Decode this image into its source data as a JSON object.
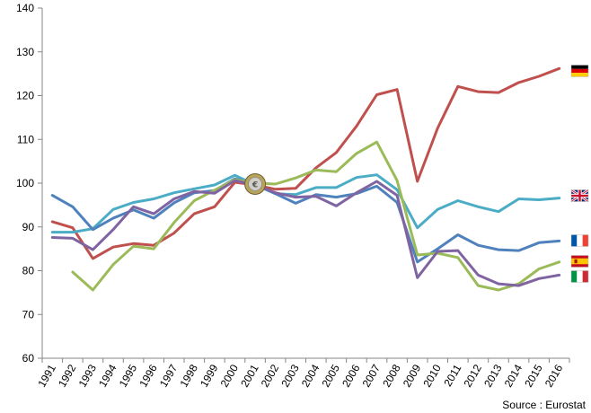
{
  "chart_data": {
    "type": "line",
    "x": [
      "1991",
      "1992",
      "1993",
      "1994",
      "1995",
      "1996",
      "1997",
      "1998",
      "1999",
      "2000",
      "2001",
      "2002",
      "2003",
      "2004",
      "2005",
      "2006",
      "2007",
      "2008",
      "2009",
      "2010",
      "2011",
      "2012",
      "2013",
      "2014",
      "2015",
      "2016"
    ],
    "ylim": [
      60,
      140
    ],
    "yticks": [
      60,
      70,
      80,
      90,
      100,
      110,
      120,
      130,
      140
    ],
    "grid": false,
    "legend": "flags at right end of each series",
    "source": "Source : Eurostat",
    "series": [
      {
        "color": "#C0504D",
        "flag": "germany",
        "values": [
          91.2,
          89.8,
          82.8,
          85.4,
          86.2,
          85.8,
          88.6,
          93.0,
          94.6,
          100.2,
          99.6,
          98.6,
          98.8,
          103.5,
          107.0,
          113.0,
          120.2,
          121.4,
          100.4,
          112.6,
          122.1,
          120.9,
          120.7,
          123.0,
          124.4,
          126.2
        ]
      },
      {
        "color": "#4BACC6",
        "flag": "united-kingdom",
        "values": [
          88.8,
          88.8,
          89.6,
          94.0,
          95.6,
          96.4,
          97.8,
          98.7,
          99.6,
          101.8,
          99.6,
          97.6,
          97.4,
          99.0,
          99.0,
          101.3,
          101.9,
          98.5,
          89.8,
          94.0,
          96.0,
          94.6,
          93.5,
          96.4,
          96.2,
          96.6
        ]
      },
      {
        "color": "#4F81BD",
        "flag": "france",
        "values": [
          97.2,
          94.6,
          89.4,
          92.0,
          93.9,
          92.0,
          95.5,
          97.8,
          98.3,
          101.0,
          99.8,
          97.6,
          95.4,
          97.4,
          96.8,
          97.6,
          99.3,
          95.6,
          82.0,
          85.0,
          88.2,
          85.8,
          84.8,
          84.6,
          86.4,
          86.8
        ]
      },
      {
        "color": "#9BBB59",
        "flag": "spain",
        "values": [
          null,
          79.7,
          75.6,
          81.4,
          85.6,
          85.0,
          91.0,
          96.0,
          98.4,
          100.8,
          100.0,
          99.8,
          101.2,
          103.0,
          102.6,
          106.8,
          109.4,
          100.6,
          83.6,
          84.0,
          83.0,
          76.6,
          75.6,
          77.0,
          80.4,
          82.0
        ]
      },
      {
        "color": "#8064A2",
        "flag": "italy",
        "values": [
          87.6,
          87.4,
          84.8,
          89.4,
          94.6,
          93.0,
          96.4,
          98.1,
          97.7,
          100.6,
          99.6,
          97.8,
          96.8,
          97.0,
          94.8,
          97.8,
          100.4,
          97.2,
          78.4,
          84.4,
          84.6,
          79.0,
          77.0,
          76.6,
          78.2,
          79.0
        ]
      }
    ],
    "icons": [
      "euro-coin-icon",
      "germany-flag-icon",
      "united-kingdom-flag-icon",
      "france-flag-icon",
      "spain-flag-icon",
      "italy-flag-icon"
    ]
  }
}
